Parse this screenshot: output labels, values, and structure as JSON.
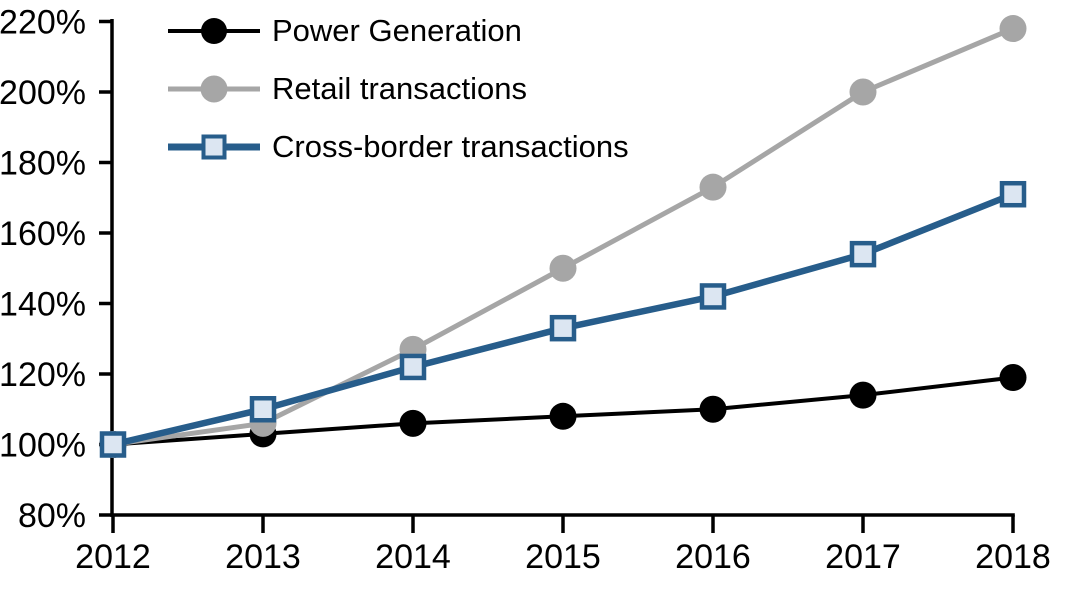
{
  "chart_data": {
    "type": "line",
    "title": "",
    "xlabel": "",
    "ylabel": "",
    "categories": [
      "2012",
      "2013",
      "2014",
      "2015",
      "2016",
      "2017",
      "2018"
    ],
    "series": [
      {
        "name": "Power Generation",
        "values": [
          100,
          103,
          106,
          108,
          110,
          114,
          119
        ],
        "unit": "%",
        "line_color": "#000000",
        "marker": "circle",
        "marker_fill": "#000000"
      },
      {
        "name": "Retail transactions",
        "values": [
          100,
          106,
          127,
          150,
          173,
          200,
          218
        ],
        "unit": "%",
        "line_color": "#a6a6a6",
        "marker": "circle",
        "marker_fill": "#a6a6a6"
      },
      {
        "name": "Cross-border transactions",
        "values": [
          100,
          110,
          122,
          133,
          142,
          154,
          171
        ],
        "unit": "%",
        "line_color": "#275d8b",
        "marker": "square",
        "marker_fill": "#dce6f2",
        "marker_border": "#275d8b"
      }
    ],
    "y_ticks": [
      {
        "value": 80,
        "label": "80%"
      },
      {
        "value": 100,
        "label": "100%"
      },
      {
        "value": 120,
        "label": "120%"
      },
      {
        "value": 140,
        "label": "140%"
      },
      {
        "value": 160,
        "label": "160%"
      },
      {
        "value": 180,
        "label": "180%"
      },
      {
        "value": 200,
        "label": "200%"
      },
      {
        "value": 220,
        "label": "220%"
      }
    ],
    "ylim": [
      80,
      220
    ],
    "grid": false,
    "legend_position": "top-left",
    "axis_color": "#000000",
    "background_color": "#ffffff"
  }
}
